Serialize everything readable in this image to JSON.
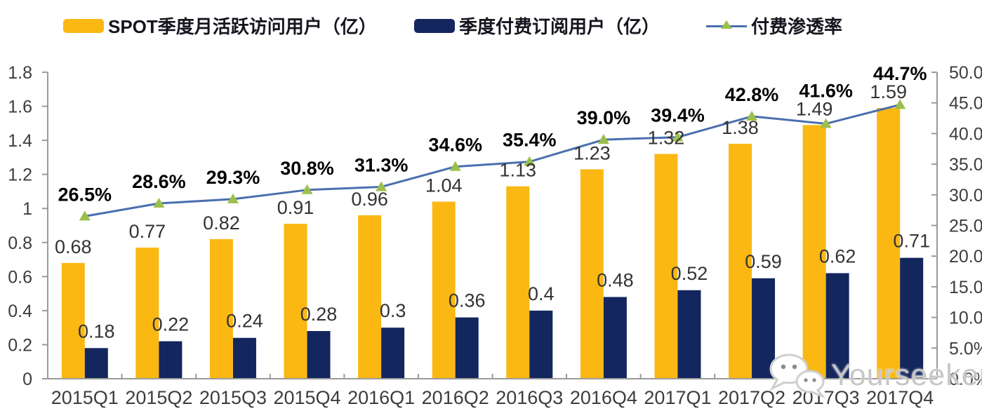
{
  "legend": {
    "items": [
      {
        "label": "SPOT季度月活跃访问用户（亿）",
        "swatch_color": "#FBB813",
        "type": "bar"
      },
      {
        "label": "季度付费订阅用户（亿）",
        "swatch_color": "#14265E",
        "type": "bar"
      },
      {
        "label": "付费渗透率",
        "line_color": "#4A6FAF",
        "marker_color": "#9CBF4B",
        "type": "line"
      }
    ]
  },
  "watermark": {
    "label": "Yourseeker",
    "icon": "wechat-icon"
  },
  "colors": {
    "mau_bar": "#FBB813",
    "subs_bar": "#14265E",
    "penetration_line": "#4A6FAF",
    "penetration_marker": "#9CBF4B",
    "axis": "#9a9a9a",
    "value_label": "#333333",
    "pct_label": "#000000",
    "tick_label": "#3d3d3d"
  },
  "chart_data": {
    "type": "bar+line combo",
    "title": "",
    "legend_position": "top",
    "grid": false,
    "categories": [
      "2015Q1",
      "2015Q2",
      "2015Q3",
      "2015Q4",
      "2016Q1",
      "2016Q2",
      "2016Q3",
      "2016Q4",
      "2017Q1",
      "2017Q2",
      "2017Q3",
      "2017Q4"
    ],
    "series": [
      {
        "name": "SPOT季度月活跃访问用户（亿）",
        "type": "bar",
        "axis": "left",
        "color": "#FBB813",
        "values": [
          0.68,
          0.77,
          0.82,
          0.91,
          0.96,
          1.04,
          1.13,
          1.23,
          1.32,
          1.38,
          1.49,
          1.59
        ],
        "labels": [
          "0.68",
          "0.77",
          "0.82",
          "0.91",
          "0.96",
          "1.04",
          "1.13",
          "1.23",
          "1.32",
          "1.38",
          "1.49",
          "1.59"
        ]
      },
      {
        "name": "季度付费订阅用户（亿）",
        "type": "bar",
        "axis": "left",
        "color": "#14265E",
        "values": [
          0.18,
          0.22,
          0.24,
          0.28,
          0.3,
          0.36,
          0.4,
          0.48,
          0.52,
          0.59,
          0.62,
          0.71
        ],
        "labels": [
          "0.18",
          "0.22",
          "0.24",
          "0.28",
          "0.3",
          "0.36",
          "0.4",
          "0.48",
          "0.52",
          "0.59",
          "0.62",
          "0.71"
        ]
      },
      {
        "name": "付费渗透率",
        "type": "line",
        "axis": "right",
        "color": "#4A6FAF",
        "marker": "triangle",
        "marker_color": "#9CBF4B",
        "values": [
          26.5,
          28.6,
          29.3,
          30.8,
          31.3,
          34.6,
          35.4,
          39.0,
          39.4,
          42.8,
          41.6,
          44.7
        ],
        "labels": [
          "26.5%",
          "28.6%",
          "29.3%",
          "30.8%",
          "31.3%",
          "34.6%",
          "35.4%",
          "39.0%",
          "39.4%",
          "42.8%",
          "41.6%",
          "44.7%"
        ]
      }
    ],
    "left_axis": {
      "min": 0,
      "max": 1.8,
      "step": 0.2,
      "tick_labels": [
        "0",
        "0.2",
        "0.4",
        "0.6",
        "0.8",
        "1",
        "1.2",
        "1.4",
        "1.6",
        "1.8"
      ]
    },
    "right_axis": {
      "min": 0,
      "max": 50,
      "step": 5,
      "tick_labels": [
        "0.0%",
        "5.0%",
        "10.0%",
        "15.0%",
        "20.0%",
        "25.0%",
        "30.0%",
        "35.0%",
        "40.0%",
        "45.0%",
        "50.0%"
      ]
    }
  }
}
